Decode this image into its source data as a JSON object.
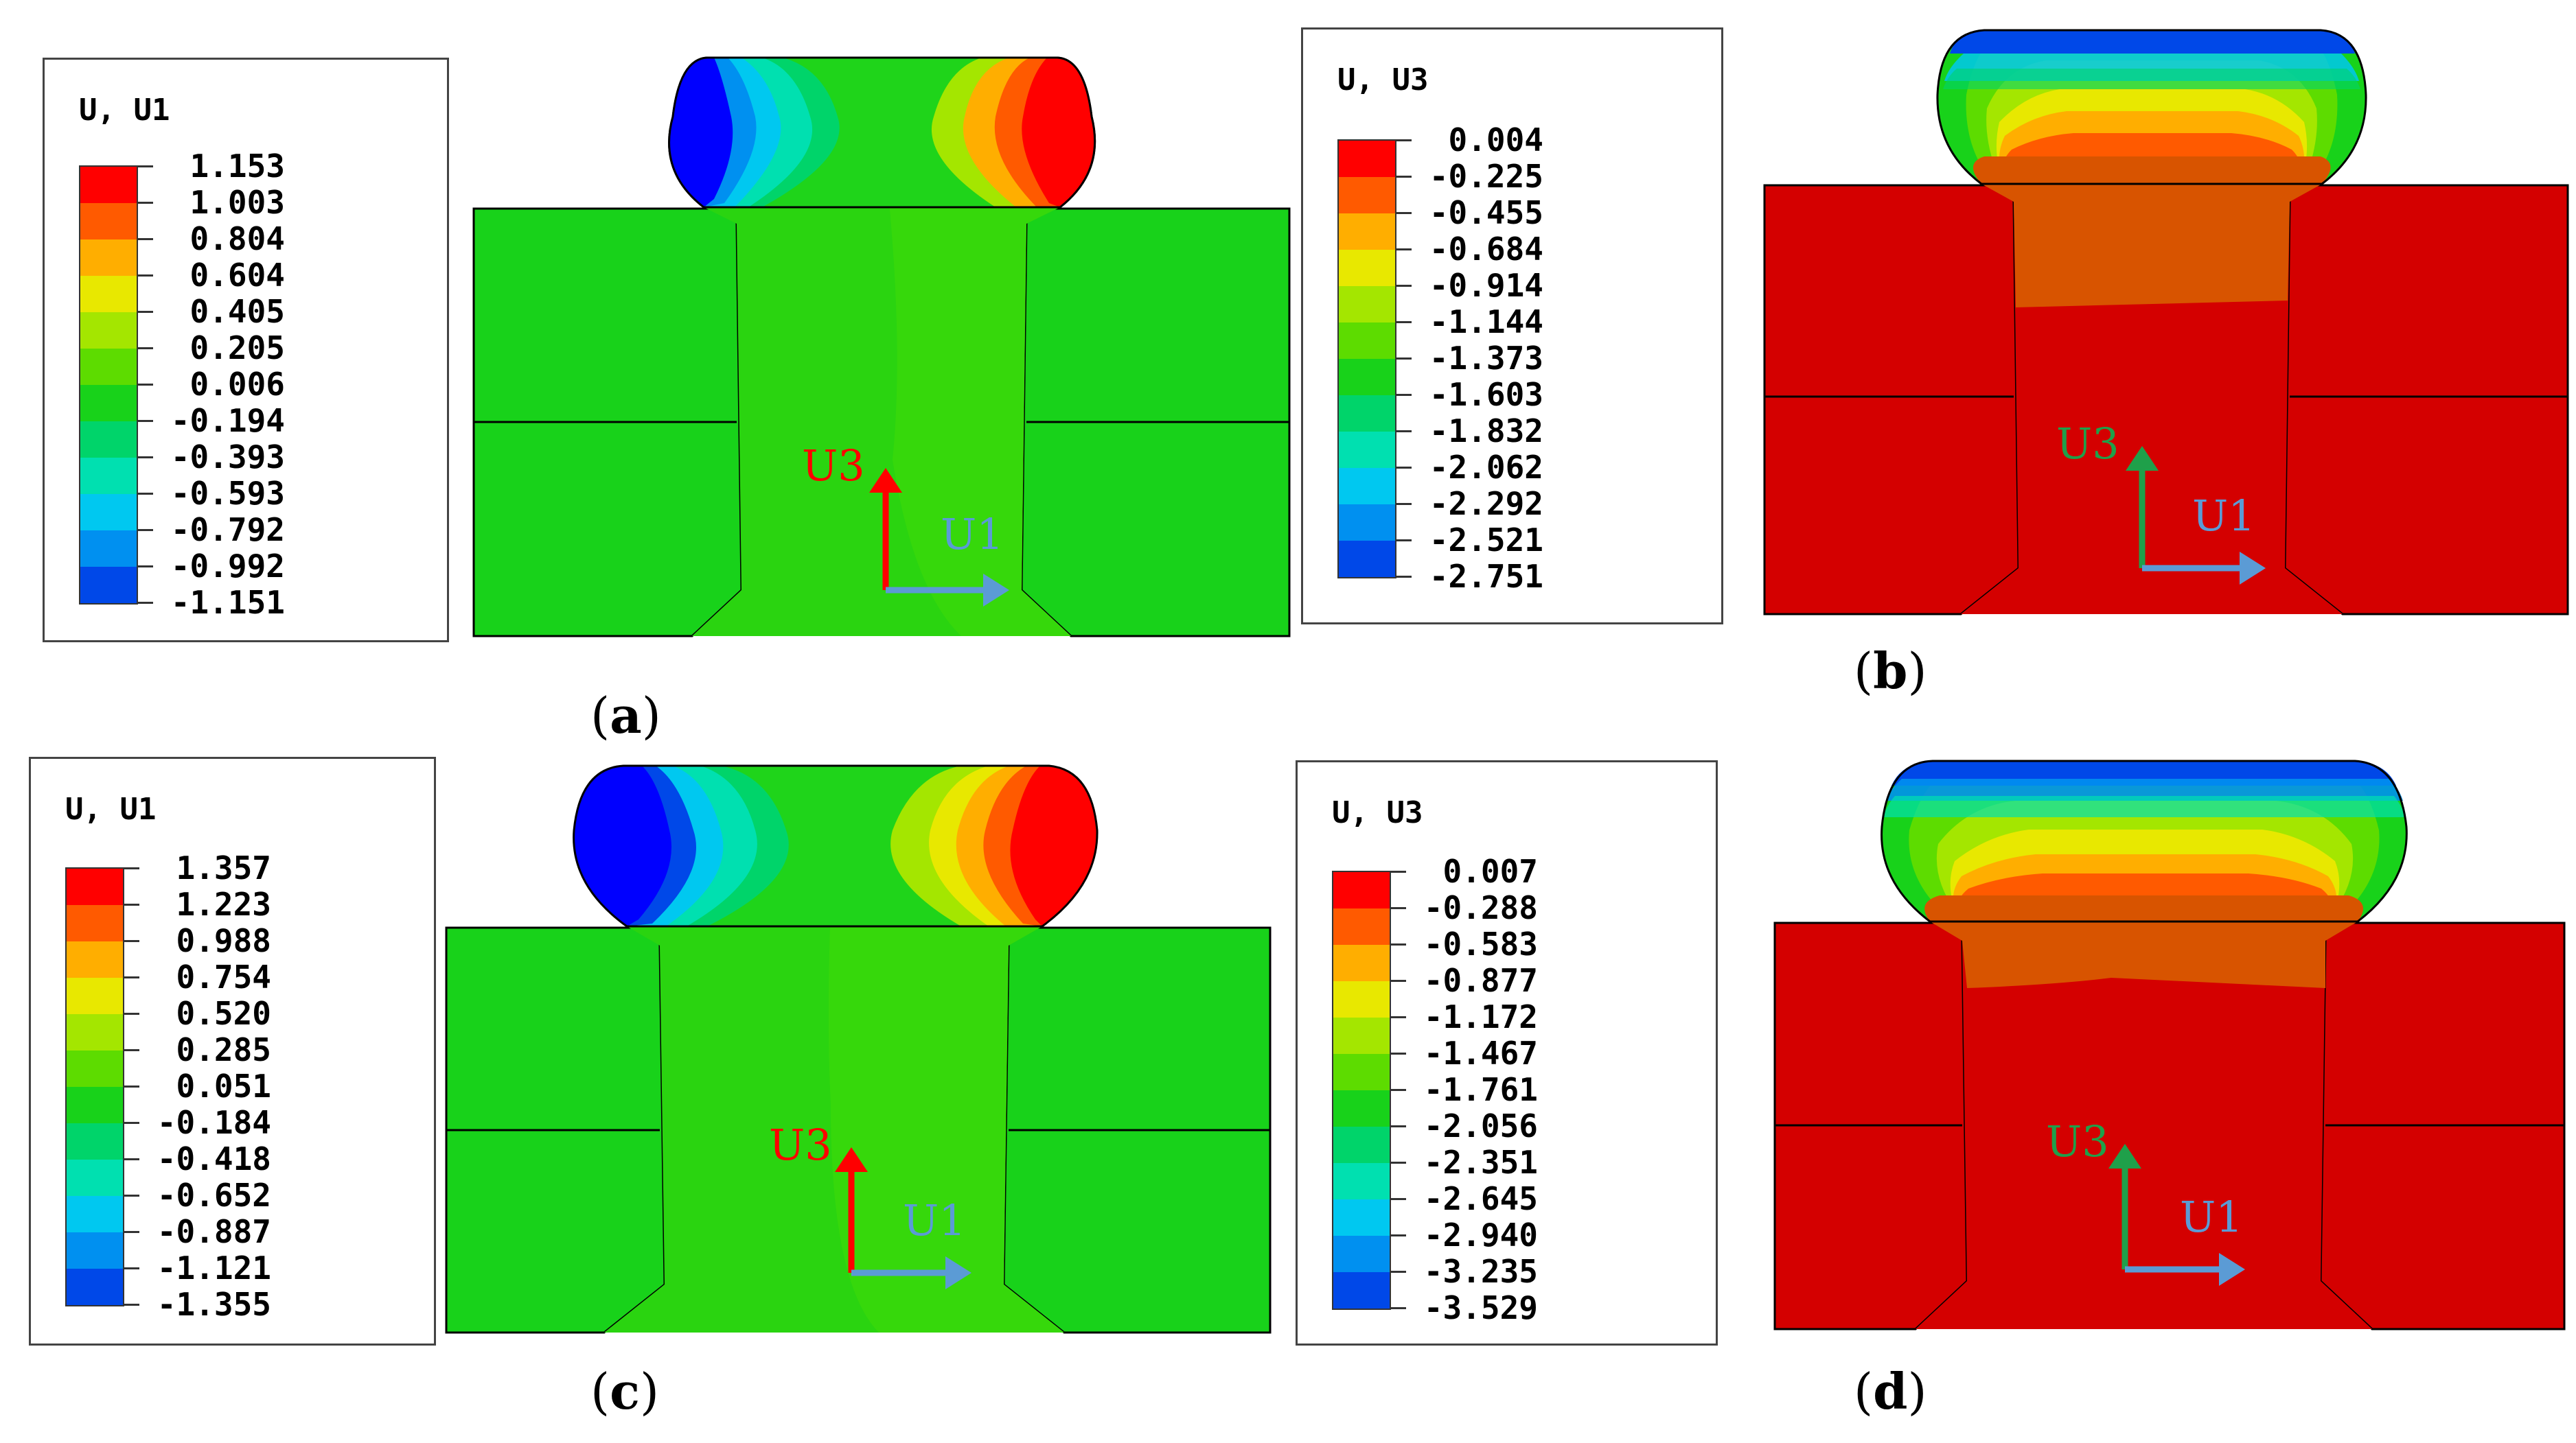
{
  "colors": [
    "#ff0000",
    "#ff5a00",
    "#ffae00",
    "#e8e800",
    "#a4e600",
    "#5ddc00",
    "#18d21a",
    "#00d46a",
    "#00e0b0",
    "#00c8f0",
    "#0090f0",
    "#0048e8",
    "#0000ff"
  ],
  "legends": [
    {
      "id": "a",
      "title": "U, U1",
      "values": [
        "1.153",
        "1.003",
        "0.804",
        "0.604",
        "0.405",
        "0.205",
        "0.006",
        "-0.194",
        "-0.393",
        "-0.593",
        "-0.792",
        "-0.992",
        "-1.151"
      ]
    },
    {
      "id": "b",
      "title": "U, U3",
      "values": [
        "0.004",
        "-0.225",
        "-0.455",
        "-0.684",
        "-0.914",
        "-1.144",
        "-1.373",
        "-1.603",
        "-1.832",
        "-2.062",
        "-2.292",
        "-2.521",
        "-2.751"
      ]
    },
    {
      "id": "c",
      "title": "U, U1",
      "values": [
        "1.357",
        "1.223",
        "0.988",
        "0.754",
        "0.520",
        "0.285",
        "0.051",
        "-0.184",
        "-0.418",
        "-0.652",
        "-0.887",
        "-1.121",
        "-1.355"
      ]
    },
    {
      "id": "d",
      "title": "U, U3",
      "values": [
        "0.007",
        "-0.288",
        "-0.583",
        "-0.877",
        "-1.172",
        "-1.467",
        "-1.761",
        "-2.056",
        "-2.351",
        "-2.645",
        "-2.940",
        "-3.235",
        "-3.529"
      ]
    }
  ],
  "axes": {
    "vertical": "U3",
    "horizontal": "U1"
  },
  "subfigures": {
    "a": "a",
    "b": "b",
    "c": "c",
    "d": "d"
  }
}
